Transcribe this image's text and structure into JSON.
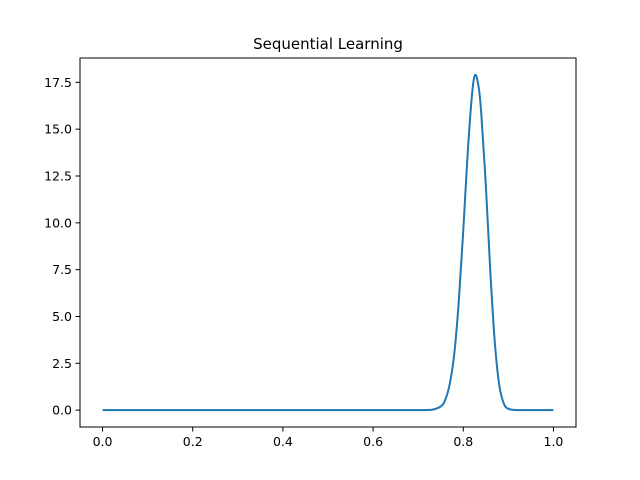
{
  "chart_data": {
    "type": "line",
    "title": "Sequential Learning",
    "xlabel": "",
    "ylabel": "",
    "xlim": [
      -0.05,
      1.05
    ],
    "ylim": [
      -0.9,
      18.8
    ],
    "xticks": [
      0.0,
      0.2,
      0.4,
      0.6,
      0.8,
      1.0
    ],
    "xtick_labels": [
      "0.0",
      "0.2",
      "0.4",
      "0.6",
      "0.8",
      "1.0"
    ],
    "yticks": [
      0.0,
      2.5,
      5.0,
      7.5,
      10.0,
      12.5,
      15.0,
      17.5
    ],
    "ytick_labels": [
      "0.0",
      "2.5",
      "5.0",
      "7.5",
      "10.0",
      "12.5",
      "15.0",
      "17.5"
    ],
    "grid": false,
    "legend": "none",
    "series": [
      {
        "color": "#1f77b4",
        "x": [
          0.0,
          0.1,
          0.2,
          0.3,
          0.4,
          0.5,
          0.6,
          0.7,
          0.73,
          0.75,
          0.76,
          0.77,
          0.78,
          0.79,
          0.8,
          0.81,
          0.82,
          0.827,
          0.835,
          0.84,
          0.85,
          0.86,
          0.87,
          0.88,
          0.89,
          0.9,
          0.92,
          0.95,
          1.0
        ],
        "y": [
          0.0,
          0.0,
          0.0,
          0.0,
          0.0,
          0.0,
          0.0,
          0.0,
          0.02,
          0.2,
          0.55,
          1.4,
          3.0,
          5.8,
          9.6,
          13.8,
          17.0,
          17.9,
          17.1,
          15.8,
          12.0,
          7.4,
          3.6,
          1.3,
          0.35,
          0.07,
          0.0,
          0.0,
          0.0
        ]
      }
    ]
  }
}
